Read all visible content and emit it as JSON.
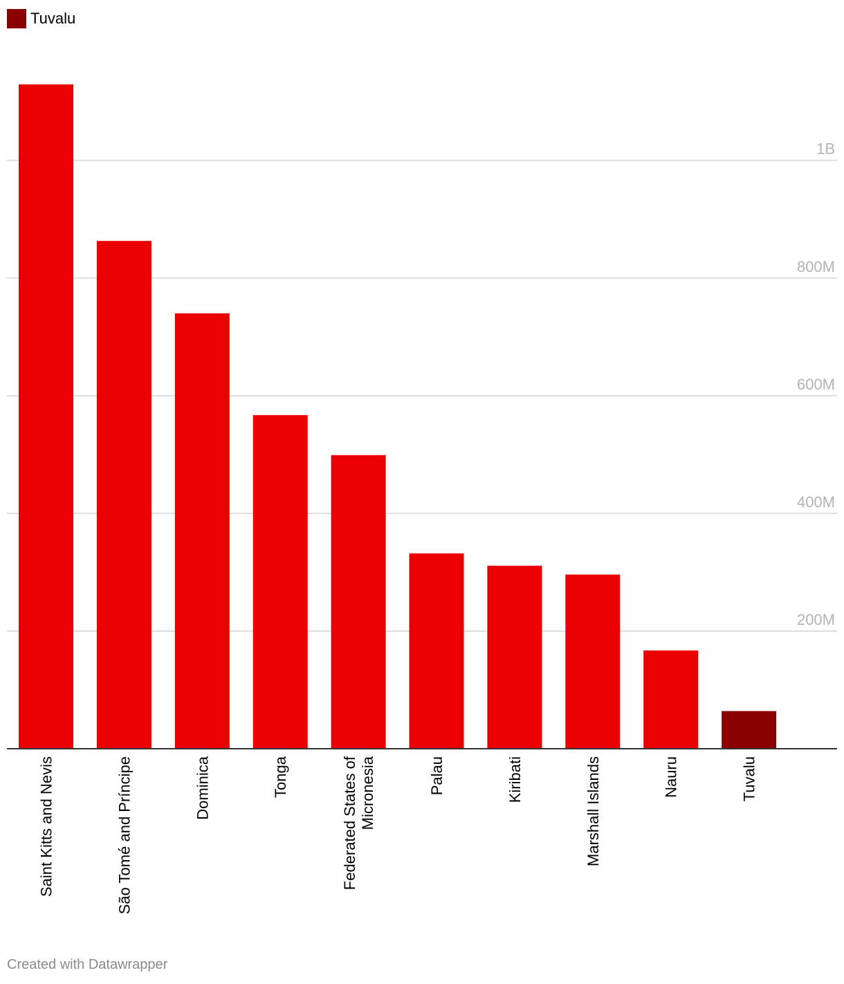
{
  "legend": {
    "label": "Tuvalu",
    "color": "#8b0000"
  },
  "credit": "Created with Datawrapper",
  "colors": {
    "bar": "#ea0000",
    "highlight": "#8b0000",
    "grid": "#dddddd",
    "tick_text": "#b3b3b3",
    "baseline": "#333333"
  },
  "chart_data": {
    "type": "bar",
    "categories": [
      "Saint Kitts and Nevis",
      "São Tomé and Príncipe",
      "Dominica",
      "Tonga",
      "Federated States of Micronesia",
      "Palau",
      "Kiribati",
      "Marshall Islands",
      "Nauru",
      "Tuvalu"
    ],
    "category_lines": [
      [
        "Saint Kitts and Nevis"
      ],
      [
        "São Tomé and Príncipe"
      ],
      [
        "Dominica"
      ],
      [
        "Tonga"
      ],
      [
        "Federated States of",
        "Micronesia"
      ],
      [
        "Palau"
      ],
      [
        "Kiribati"
      ],
      [
        "Marshall Islands"
      ],
      [
        "Nauru"
      ],
      [
        "Tuvalu"
      ]
    ],
    "values": [
      1129000000,
      863000000,
      740000000,
      567000000,
      499000000,
      332000000,
      311000000,
      296000000,
      167000000,
      64000000
    ],
    "highlight": [
      "Tuvalu"
    ],
    "yticks": [
      0,
      200000000,
      400000000,
      600000000,
      800000000,
      1000000000
    ],
    "ytick_labels": [
      "",
      "200M",
      "400M",
      "600M",
      "800M",
      "1B"
    ],
    "ylim": [
      0,
      1129000000
    ],
    "title": "",
    "xlabel": "",
    "ylabel": "",
    "grid": true,
    "legend_position": "top-left"
  }
}
